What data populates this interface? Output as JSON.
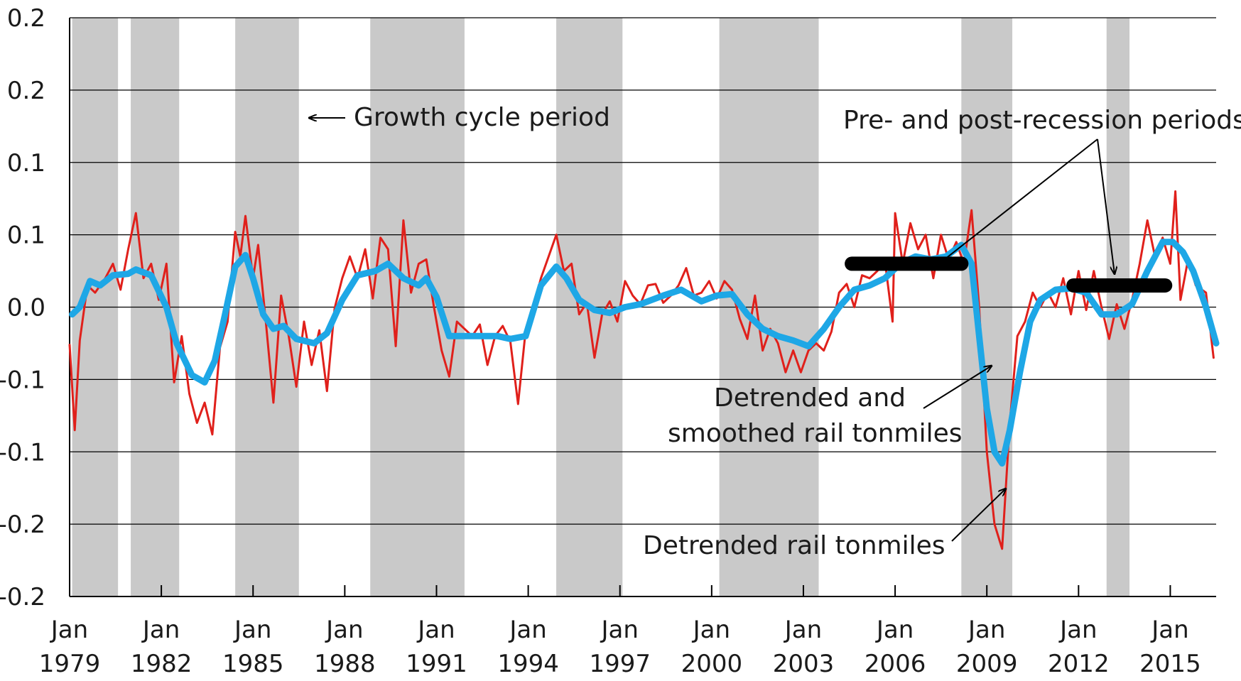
{
  "chart_data": {
    "type": "line",
    "title": "",
    "xlabel": "",
    "ylabel": "",
    "x_range": [
      "1979-01",
      "2016-07"
    ],
    "ylim": [
      -0.2,
      0.2
    ],
    "grid": "horizontal",
    "y_tick_labels": [
      "0.2",
      "0.2",
      "0.1",
      "0.1",
      "0.0",
      "-0.1",
      "-0.1",
      "-0.2",
      "-0.2"
    ],
    "y_tick_values": [
      0.2,
      0.15,
      0.1,
      0.05,
      0.0,
      -0.05,
      -0.1,
      -0.15,
      -0.2
    ],
    "x_ticks": [
      {
        "x": "1979-01",
        "line1": "Jan",
        "line2": "1979"
      },
      {
        "x": "1982-01",
        "line1": "Jan",
        "line2": "1982"
      },
      {
        "x": "1985-01",
        "line1": "Jan",
        "line2": "1985"
      },
      {
        "x": "1988-01",
        "line1": "Jan",
        "line2": "1988"
      },
      {
        "x": "1991-01",
        "line1": "Jan",
        "line2": "1991"
      },
      {
        "x": "1994-01",
        "line1": "Jan",
        "line2": "1994"
      },
      {
        "x": "1997-01",
        "line1": "Jan",
        "line2": "1997"
      },
      {
        "x": "2000-01",
        "line1": "Jan",
        "line2": "2000"
      },
      {
        "x": "2003-01",
        "line1": "Jan",
        "line2": "2003"
      },
      {
        "x": "2006-01",
        "line1": "Jan",
        "line2": "2006"
      },
      {
        "x": "2009-01",
        "line1": "Jan",
        "line2": "2009"
      },
      {
        "x": "2012-01",
        "line1": "Jan",
        "line2": "2012"
      },
      {
        "x": "2015-01",
        "line1": "Jan",
        "line2": "2015"
      }
    ],
    "shaded_periods": [
      [
        "1979-02",
        "1980-07"
      ],
      [
        "1981-01",
        "1982-07"
      ],
      [
        "1984-06",
        "1986-06"
      ],
      [
        "1988-11",
        "1991-11"
      ],
      [
        "1994-12",
        "1997-01"
      ],
      [
        "2000-04",
        "2003-06"
      ],
      [
        "2008-03",
        "2009-10"
      ],
      [
        "2012-12",
        "2013-08"
      ]
    ],
    "bars": [
      {
        "start": "2004-08",
        "end": "2008-03",
        "y": 0.03
      },
      {
        "start": "2011-11",
        "end": "2014-11",
        "y": 0.015
      }
    ],
    "series": [
      {
        "name": "Detrended rail tonmiles",
        "color": "#e0201b",
        "points": [
          [
            "1979-01",
            -0.026
          ],
          [
            "1979-03",
            -0.085
          ],
          [
            "1979-05",
            -0.023
          ],
          [
            "1979-08",
            0.015
          ],
          [
            "1979-11",
            0.01
          ],
          [
            "1980-03",
            0.02
          ],
          [
            "1980-06",
            0.03
          ],
          [
            "1980-09",
            0.012
          ],
          [
            "1980-12",
            0.04
          ],
          [
            "1981-03",
            0.065
          ],
          [
            "1981-06",
            0.02
          ],
          [
            "1981-09",
            0.03
          ],
          [
            "1981-12",
            0.005
          ],
          [
            "1982-03",
            0.03
          ],
          [
            "1982-06",
            -0.052
          ],
          [
            "1982-09",
            -0.02
          ],
          [
            "1982-12",
            -0.06
          ],
          [
            "1983-03",
            -0.08
          ],
          [
            "1983-06",
            -0.066
          ],
          [
            "1983-09",
            -0.088
          ],
          [
            "1983-12",
            -0.028
          ],
          [
            "1984-03",
            -0.01
          ],
          [
            "1984-06",
            0.052
          ],
          [
            "1984-08",
            0.035
          ],
          [
            "1984-10",
            0.063
          ],
          [
            "1985-01",
            0.02
          ],
          [
            "1985-03",
            0.043
          ],
          [
            "1985-06",
            -0.01
          ],
          [
            "1985-09",
            -0.066
          ],
          [
            "1985-12",
            0.008
          ],
          [
            "1986-03",
            -0.02
          ],
          [
            "1986-06",
            -0.055
          ],
          [
            "1986-09",
            -0.01
          ],
          [
            "1986-12",
            -0.04
          ],
          [
            "1987-03",
            -0.016
          ],
          [
            "1987-06",
            -0.058
          ],
          [
            "1987-09",
            -0.001
          ],
          [
            "1987-12",
            0.02
          ],
          [
            "1988-03",
            0.035
          ],
          [
            "1988-06",
            0.02
          ],
          [
            "1988-09",
            0.04
          ],
          [
            "1988-12",
            0.006
          ],
          [
            "1989-03",
            0.048
          ],
          [
            "1989-06",
            0.04
          ],
          [
            "1989-09",
            -0.027
          ],
          [
            "1989-12",
            0.06
          ],
          [
            "1990-03",
            0.01
          ],
          [
            "1990-06",
            0.03
          ],
          [
            "1990-09",
            0.033
          ],
          [
            "1990-12",
            0.0
          ],
          [
            "1991-03",
            -0.03
          ],
          [
            "1991-06",
            -0.048
          ],
          [
            "1991-09",
            -0.01
          ],
          [
            "1991-12",
            -0.015
          ],
          [
            "1992-03",
            -0.02
          ],
          [
            "1992-06",
            -0.012
          ],
          [
            "1992-09",
            -0.04
          ],
          [
            "1992-12",
            -0.02
          ],
          [
            "1993-03",
            -0.013
          ],
          [
            "1993-06",
            -0.024
          ],
          [
            "1993-09",
            -0.067
          ],
          [
            "1993-12",
            -0.016
          ],
          [
            "1994-03",
            0.0
          ],
          [
            "1994-06",
            0.02
          ],
          [
            "1994-09",
            0.035
          ],
          [
            "1994-12",
            0.05
          ],
          [
            "1995-03",
            0.025
          ],
          [
            "1995-06",
            0.03
          ],
          [
            "1995-09",
            -0.005
          ],
          [
            "1995-12",
            0.003
          ],
          [
            "1996-03",
            -0.035
          ],
          [
            "1996-06",
            -0.005
          ],
          [
            "1996-09",
            0.004
          ],
          [
            "1996-12",
            -0.01
          ],
          [
            "1997-03",
            0.018
          ],
          [
            "1997-06",
            0.008
          ],
          [
            "1997-09",
            0.002
          ],
          [
            "1997-12",
            0.015
          ],
          [
            "1998-03",
            0.016
          ],
          [
            "1998-06",
            0.003
          ],
          [
            "1998-09",
            0.008
          ],
          [
            "1998-12",
            0.015
          ],
          [
            "1999-03",
            0.027
          ],
          [
            "1999-06",
            0.008
          ],
          [
            "1999-09",
            0.01
          ],
          [
            "1999-12",
            0.018
          ],
          [
            "2000-03",
            0.006
          ],
          [
            "2000-06",
            0.018
          ],
          [
            "2000-09",
            0.012
          ],
          [
            "2000-12",
            -0.008
          ],
          [
            "2001-03",
            -0.022
          ],
          [
            "2001-06",
            0.008
          ],
          [
            "2001-09",
            -0.03
          ],
          [
            "2001-12",
            -0.015
          ],
          [
            "2002-03",
            -0.025
          ],
          [
            "2002-06",
            -0.045
          ],
          [
            "2002-09",
            -0.03
          ],
          [
            "2002-12",
            -0.045
          ],
          [
            "2003-03",
            -0.03
          ],
          [
            "2003-06",
            -0.025
          ],
          [
            "2003-09",
            -0.03
          ],
          [
            "2003-12",
            -0.017
          ],
          [
            "2004-03",
            0.01
          ],
          [
            "2004-06",
            0.016
          ],
          [
            "2004-09",
            0.0
          ],
          [
            "2004-12",
            0.022
          ],
          [
            "2005-03",
            0.02
          ],
          [
            "2005-06",
            0.025
          ],
          [
            "2005-09",
            0.032
          ],
          [
            "2005-12",
            -0.01
          ],
          [
            "2006-01",
            0.065
          ],
          [
            "2006-04",
            0.03
          ],
          [
            "2006-07",
            0.058
          ],
          [
            "2006-10",
            0.04
          ],
          [
            "2007-01",
            0.05
          ],
          [
            "2007-04",
            0.02
          ],
          [
            "2007-07",
            0.05
          ],
          [
            "2007-10",
            0.033
          ],
          [
            "2008-01",
            0.045
          ],
          [
            "2008-04",
            0.03
          ],
          [
            "2008-07",
            0.067
          ],
          [
            "2008-10",
            0.0
          ],
          [
            "2009-01",
            -0.1
          ],
          [
            "2009-04",
            -0.15
          ],
          [
            "2009-07",
            -0.167
          ],
          [
            "2009-10",
            -0.08
          ],
          [
            "2010-01",
            -0.02
          ],
          [
            "2010-04",
            -0.01
          ],
          [
            "2010-07",
            0.01
          ],
          [
            "2010-10",
            0.0
          ],
          [
            "2011-01",
            0.01
          ],
          [
            "2011-04",
            0.0
          ],
          [
            "2011-07",
            0.02
          ],
          [
            "2011-10",
            -0.005
          ],
          [
            "2012-01",
            0.025
          ],
          [
            "2012-04",
            -0.002
          ],
          [
            "2012-07",
            0.025
          ],
          [
            "2012-10",
            0.0
          ],
          [
            "2013-01",
            -0.022
          ],
          [
            "2013-04",
            0.002
          ],
          [
            "2013-07",
            -0.015
          ],
          [
            "2013-10",
            0.005
          ],
          [
            "2014-01",
            0.03
          ],
          [
            "2014-04",
            0.06
          ],
          [
            "2014-07",
            0.035
          ],
          [
            "2014-10",
            0.048
          ],
          [
            "2015-01",
            0.03
          ],
          [
            "2015-03",
            0.08
          ],
          [
            "2015-05",
            0.005
          ],
          [
            "2015-08",
            0.033
          ],
          [
            "2015-11",
            0.015
          ],
          [
            "2016-03",
            0.01
          ],
          [
            "2016-06",
            -0.035
          ]
        ]
      },
      {
        "name": "Detrended and smoothed rail tonmiles",
        "color": "#1ea7e6",
        "points": [
          [
            "1979-02",
            -0.005
          ],
          [
            "1979-05",
            0.0
          ],
          [
            "1979-09",
            0.018
          ],
          [
            "1980-01",
            0.015
          ],
          [
            "1980-06",
            0.022
          ],
          [
            "1980-12",
            0.023
          ],
          [
            "1981-03",
            0.026
          ],
          [
            "1981-09",
            0.022
          ],
          [
            "1982-03",
            0.0
          ],
          [
            "1982-07",
            -0.025
          ],
          [
            "1983-01",
            -0.047
          ],
          [
            "1983-06",
            -0.052
          ],
          [
            "1983-10",
            -0.037
          ],
          [
            "1984-02",
            -0.005
          ],
          [
            "1984-06",
            0.028
          ],
          [
            "1984-10",
            0.036
          ],
          [
            "1985-01",
            0.02
          ],
          [
            "1985-05",
            -0.005
          ],
          [
            "1985-09",
            -0.015
          ],
          [
            "1986-01",
            -0.013
          ],
          [
            "1986-06",
            -0.022
          ],
          [
            "1987-01",
            -0.025
          ],
          [
            "1987-06",
            -0.018
          ],
          [
            "1987-12",
            0.005
          ],
          [
            "1988-06",
            0.022
          ],
          [
            "1989-01",
            0.025
          ],
          [
            "1989-06",
            0.03
          ],
          [
            "1989-12",
            0.02
          ],
          [
            "1990-06",
            0.015
          ],
          [
            "1990-09",
            0.02
          ],
          [
            "1991-01",
            0.007
          ],
          [
            "1991-06",
            -0.02
          ],
          [
            "1991-12",
            -0.02
          ],
          [
            "1992-06",
            -0.02
          ],
          [
            "1993-01",
            -0.02
          ],
          [
            "1993-06",
            -0.022
          ],
          [
            "1993-12",
            -0.02
          ],
          [
            "1994-06",
            0.015
          ],
          [
            "1994-12",
            0.028
          ],
          [
            "1995-04",
            0.02
          ],
          [
            "1995-09",
            0.005
          ],
          [
            "1996-03",
            -0.002
          ],
          [
            "1996-09",
            -0.004
          ],
          [
            "1997-03",
            0.0
          ],
          [
            "1997-09",
            0.002
          ],
          [
            "1998-06",
            0.008
          ],
          [
            "1999-01",
            0.012
          ],
          [
            "1999-09",
            0.004
          ],
          [
            "2000-03",
            0.008
          ],
          [
            "2000-09",
            0.009
          ],
          [
            "2001-03",
            -0.005
          ],
          [
            "2001-09",
            -0.015
          ],
          [
            "2002-03",
            -0.02
          ],
          [
            "2002-09",
            -0.023
          ],
          [
            "2003-03",
            -0.027
          ],
          [
            "2003-09",
            -0.015
          ],
          [
            "2004-03",
            0.0
          ],
          [
            "2004-09",
            0.012
          ],
          [
            "2005-03",
            0.015
          ],
          [
            "2005-09",
            0.02
          ],
          [
            "2006-03",
            0.03
          ],
          [
            "2006-09",
            0.035
          ],
          [
            "2007-03",
            0.033
          ],
          [
            "2007-09",
            0.035
          ],
          [
            "2008-03",
            0.043
          ],
          [
            "2008-07",
            0.03
          ],
          [
            "2008-10",
            -0.02
          ],
          [
            "2009-01",
            -0.07
          ],
          [
            "2009-04",
            -0.1
          ],
          [
            "2009-07",
            -0.108
          ],
          [
            "2009-10",
            -0.085
          ],
          [
            "2010-02",
            -0.045
          ],
          [
            "2010-06",
            -0.01
          ],
          [
            "2010-10",
            0.005
          ],
          [
            "2011-04",
            0.012
          ],
          [
            "2011-10",
            0.013
          ],
          [
            "2012-04",
            0.01
          ],
          [
            "2012-10",
            -0.005
          ],
          [
            "2013-04",
            -0.005
          ],
          [
            "2013-10",
            0.002
          ],
          [
            "2014-04",
            0.025
          ],
          [
            "2014-10",
            0.045
          ],
          [
            "2015-02",
            0.045
          ],
          [
            "2015-06",
            0.038
          ],
          [
            "2015-10",
            0.025
          ],
          [
            "2016-03",
            0.0
          ],
          [
            "2016-07",
            -0.025
          ]
        ]
      }
    ]
  },
  "annotations": {
    "growth_cycle": "Growth cycle period",
    "pre_post": "Pre- and post-recession periods",
    "smoothed_line1": "Detrended and",
    "smoothed_line2": "smoothed rail tonmiles",
    "raw": "Detrended rail tonmiles"
  }
}
